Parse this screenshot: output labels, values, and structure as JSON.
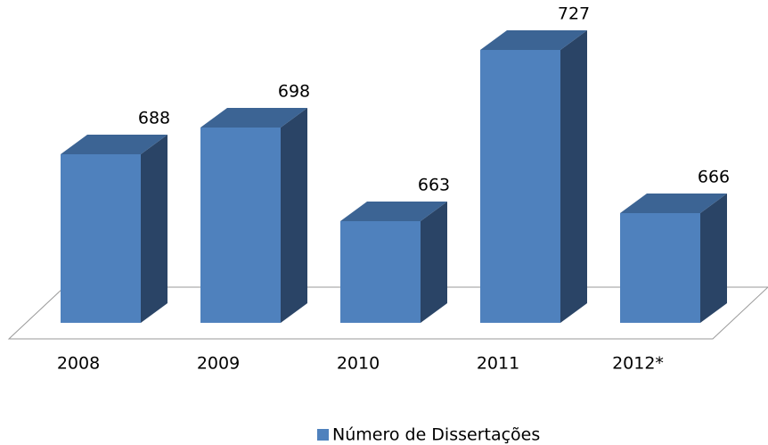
{
  "chart_data": {
    "type": "bar3d",
    "categories": [
      "2008",
      "2009",
      "2010",
      "2011",
      "2012*"
    ],
    "series": [
      {
        "name": "Número de Dissertações",
        "color": "#4f81bd",
        "values": [
          688,
          698,
          663,
          727,
          666
        ]
      }
    ],
    "ylim": [
      625,
      730
    ],
    "legend": "bottom"
  }
}
